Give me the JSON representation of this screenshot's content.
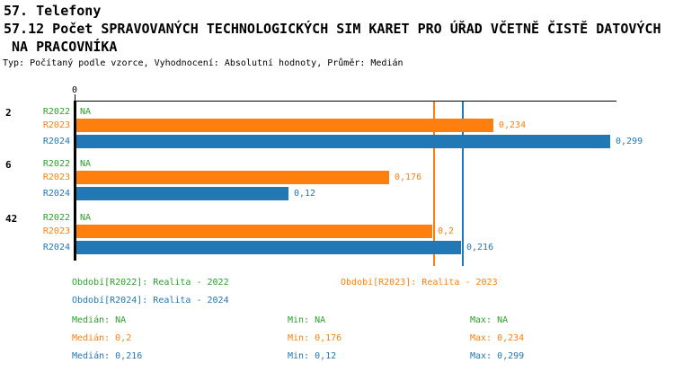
{
  "header": {
    "section": "57. Telefony",
    "title_line1": "57.12 Počet SPRAVOVANÝCH TECHNOLOGICKÝCH SIM KARET PRO ÚŘAD VČETNĚ ČISTĚ DATOVÝCH",
    "title_line2": " NA PRACOVNÍKA",
    "meta": "Typ: Počítaný podle vzorce, Vyhodnocení: Absolutní hodnoty, Průměr: Medián"
  },
  "colors": {
    "r2022": "#2CA02C",
    "r2023": "#FF7F0E",
    "r2024": "#2277B5",
    "axis": "#000000"
  },
  "chart_data": {
    "type": "bar",
    "orientation": "horizontal",
    "title": "57.12 Počet SPRAVOVANÝCH TECHNOLOGICKÝCH SIM KARET PRO ÚŘAD VČETNĚ ČISTĚ DATOVÝCH NA PRACOVNÍKA",
    "x_axis": {
      "tick_labels": [
        "0"
      ],
      "range": [
        0,
        0.302
      ],
      "grid": false
    },
    "series_names": [
      "R2022",
      "R2023",
      "R2024"
    ],
    "groups": [
      {
        "label": "2",
        "bars": [
          {
            "series": "R2022",
            "value": null,
            "value_label": "NA"
          },
          {
            "series": "R2023",
            "value": 0.234,
            "value_label": "0,234"
          },
          {
            "series": "R2024",
            "value": 0.299,
            "value_label": "0,299"
          }
        ]
      },
      {
        "label": "6",
        "bars": [
          {
            "series": "R2022",
            "value": null,
            "value_label": "NA"
          },
          {
            "series": "R2023",
            "value": 0.176,
            "value_label": "0,176"
          },
          {
            "series": "R2024",
            "value": 0.12,
            "value_label": "0,12"
          }
        ]
      },
      {
        "label": "42",
        "bars": [
          {
            "series": "R2022",
            "value": null,
            "value_label": "NA"
          },
          {
            "series": "R2023",
            "value": 0.2,
            "value_label": "0,2"
          },
          {
            "series": "R2024",
            "value": 0.216,
            "value_label": "0,216"
          }
        ]
      }
    ],
    "median_lines": [
      {
        "series": "R2023",
        "value": 0.2
      },
      {
        "series": "R2024",
        "value": 0.216
      }
    ],
    "legend_position": "bottom"
  },
  "legend": {
    "items": [
      {
        "series": "R2022",
        "label": "Období[R2022]: Realita - 2022"
      },
      {
        "series": "R2023",
        "label": "Období[R2023]: Realita - 2023"
      },
      {
        "series": "R2024",
        "label": "Období[R2024]: Realita - 2024"
      }
    ]
  },
  "stats": {
    "rows": [
      {
        "series": "R2022",
        "median": "Medián: NA",
        "min": "Min: NA",
        "max": "Max: NA"
      },
      {
        "series": "R2023",
        "median": "Medián: 0,2",
        "min": "Min: 0,176",
        "max": "Max: 0,234"
      },
      {
        "series": "R2024",
        "median": "Medián: 0,216",
        "min": "Min: 0,12",
        "max": "Max: 0,299"
      }
    ]
  }
}
